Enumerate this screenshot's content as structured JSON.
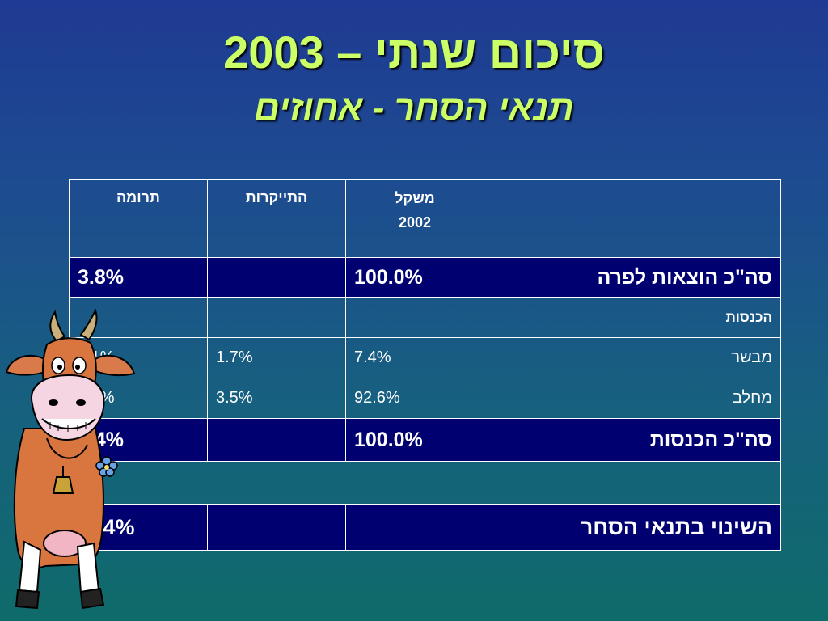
{
  "slide": {
    "title": "סיכום שנתי – 2003",
    "subtitle": "תנאי הסחר - אחוזים"
  },
  "table": {
    "headers": {
      "weight_line1": "משקל",
      "weight_line2": "2002",
      "price_increase": "התייקרות",
      "contribution": "תרומה"
    },
    "rows": [
      {
        "label": "סה\"כ הוצאות לפרה",
        "weight": "100.0%",
        "increase": "",
        "contribution": "3.8%"
      },
      {
        "label": "הכנסות",
        "weight": "",
        "increase": "",
        "contribution": ""
      },
      {
        "label": "מבשר",
        "weight": "7.4%",
        "increase": "1.7%",
        "contribution": "0.1%"
      },
      {
        "label": "מחלב",
        "weight": "92.6%",
        "increase": "3.5%",
        "contribution": "3.3%"
      },
      {
        "label": "סה\"כ הכנסות",
        "weight": "100.0%",
        "increase": "",
        "contribution": "3.4%"
      },
      {
        "label": "השינוי בתנאי הסחר",
        "weight": "",
        "increase": "",
        "contribution": "-0.4%"
      }
    ]
  },
  "colors": {
    "title": "#ccff66",
    "dark_row": "#000070",
    "background_top": "#1f3a93",
    "background_bottom": "#0f6b6a"
  },
  "illustration": "cartoon-cow"
}
